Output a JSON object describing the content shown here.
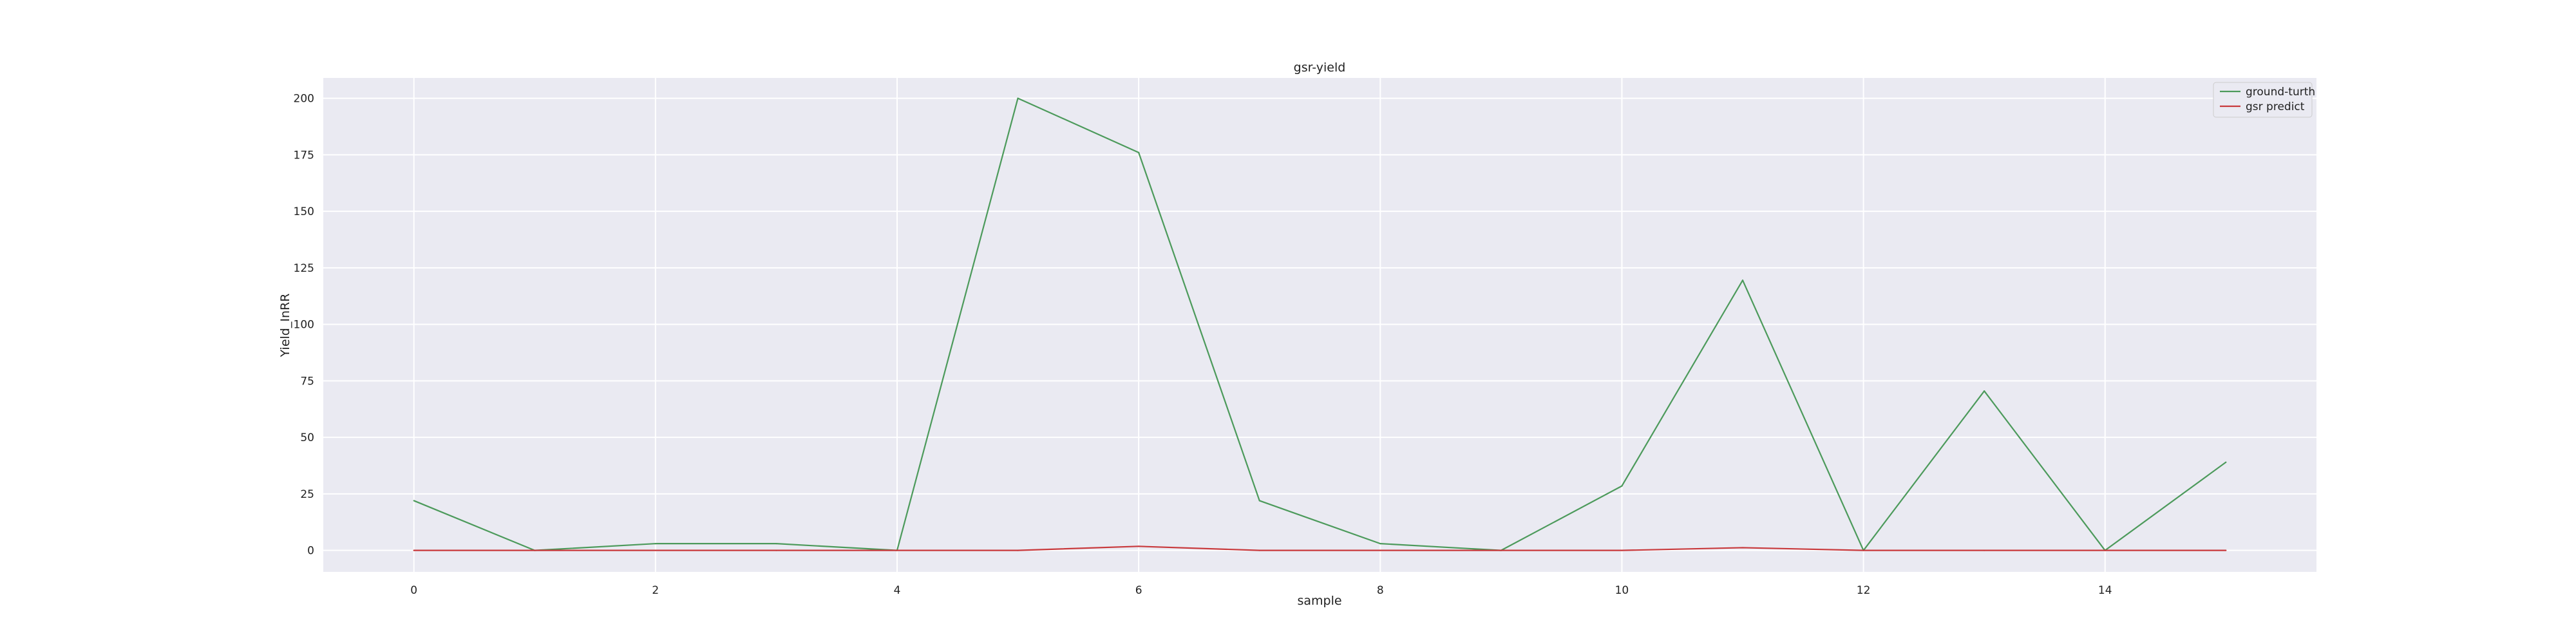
{
  "chart_data": {
    "type": "line",
    "title": "gsr-yield",
    "xlabel": "sample",
    "ylabel": "Yield_InRR",
    "xlim": [
      -0.75,
      15.75
    ],
    "ylim": [
      -9.5,
      209
    ],
    "x_ticks": [
      0,
      2,
      4,
      6,
      8,
      10,
      12,
      14
    ],
    "y_ticks": [
      0,
      25,
      50,
      75,
      100,
      125,
      150,
      175,
      200
    ],
    "grid": true,
    "legend_position": "top-right",
    "x": [
      0,
      1,
      2,
      3,
      4,
      5,
      6,
      7,
      8,
      9,
      10,
      11,
      12,
      13,
      14,
      15
    ],
    "series": [
      {
        "name": "ground-turth",
        "color": "#4c9a5b",
        "values": [
          22,
          0,
          3,
          3,
          0,
          200,
          176,
          22,
          3,
          0,
          28.5,
          119.5,
          0,
          70.5,
          0,
          39
        ]
      },
      {
        "name": "gsr predict",
        "color": "#c8393c",
        "values": [
          0,
          0,
          0,
          0,
          0,
          0,
          1.8,
          0,
          0,
          0,
          0,
          1.2,
          0,
          0,
          0,
          0
        ]
      }
    ]
  },
  "style": {
    "plot_background": "#eaeaf2",
    "grid_color": "#ffffff"
  }
}
